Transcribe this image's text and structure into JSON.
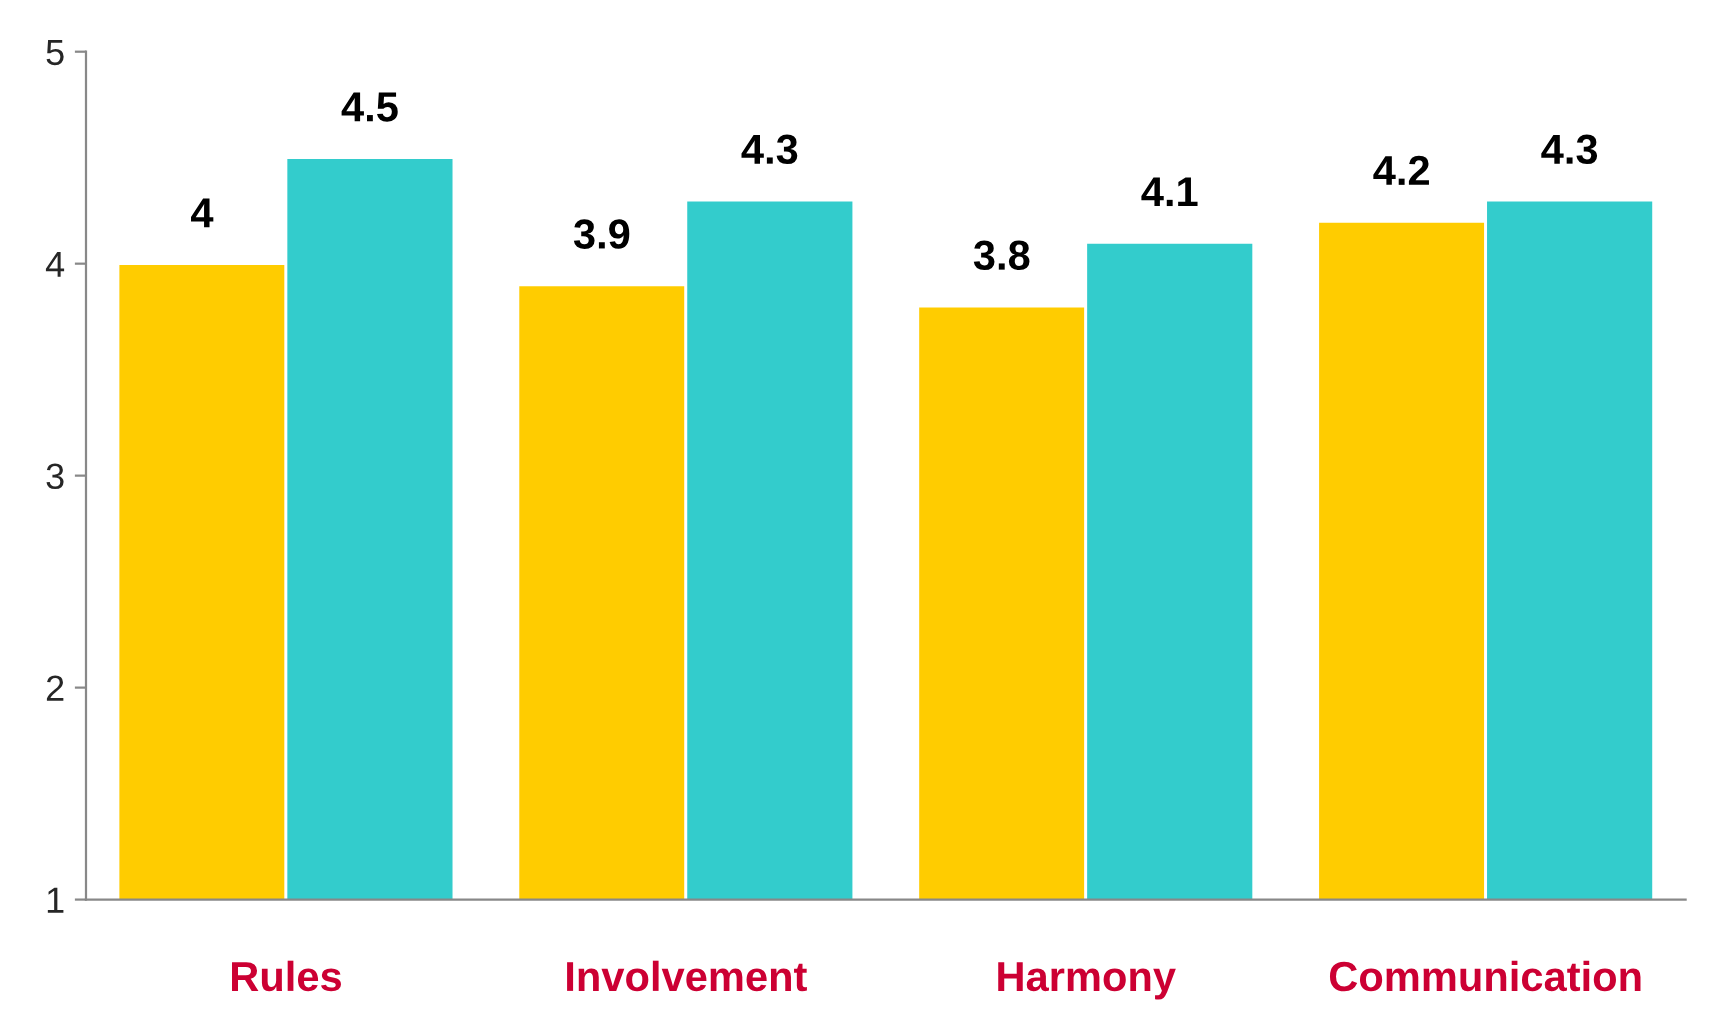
{
  "chart_data": {
    "type": "bar",
    "categories": [
      "Rules",
      "Involvement",
      "Harmony",
      "Communication"
    ],
    "series": [
      {
        "color": "#ffcc00",
        "values": [
          4,
          3.9,
          3.8,
          4.2
        ]
      },
      {
        "color": "#33cccc",
        "values": [
          4.5,
          4.3,
          4.1,
          4.3
        ]
      }
    ],
    "ylim": [
      1,
      5
    ],
    "yticks": [
      1,
      2,
      3,
      4,
      5
    ],
    "grid": false,
    "data_labels": true
  }
}
